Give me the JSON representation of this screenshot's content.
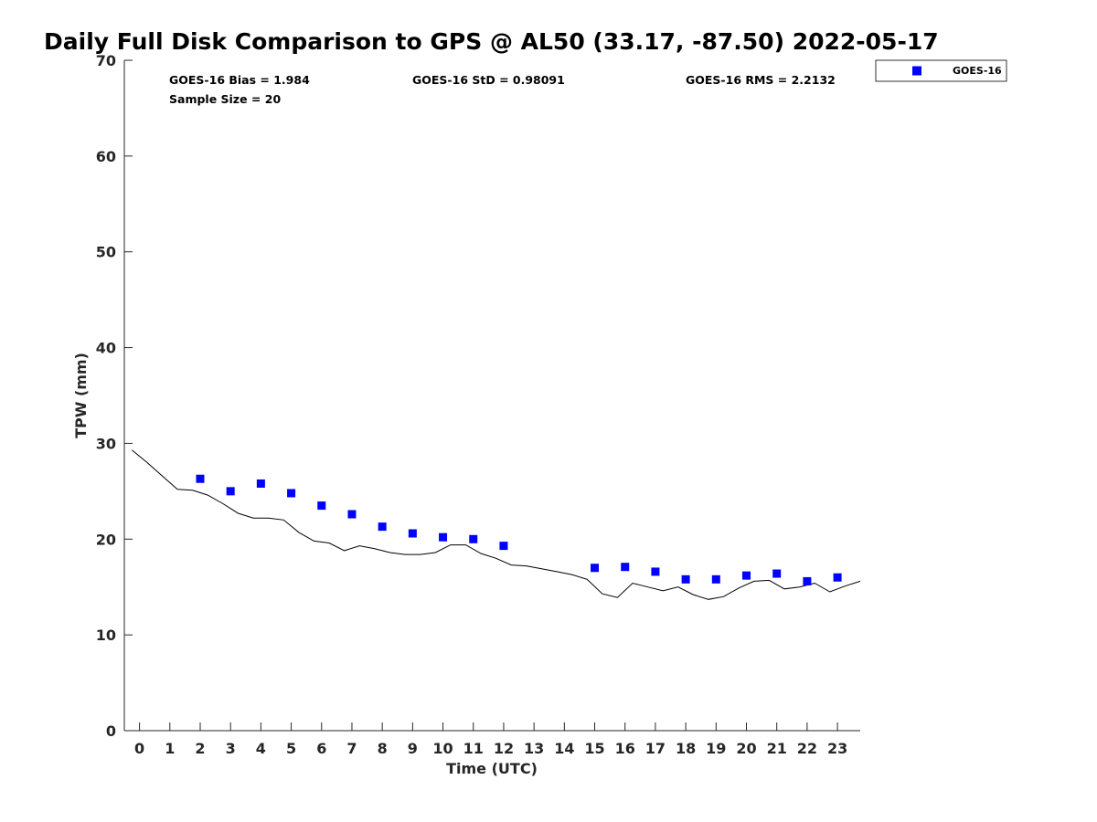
{
  "chart_data": {
    "type": "scatter",
    "title": "Daily Full Disk Comparison to GPS @ AL50 (33.17, -87.50) 2022-05-17",
    "xlabel": "Time (UTC)",
    "ylabel": "TPW (mm)",
    "xlim": [
      -0.5,
      23.75
    ],
    "ylim": [
      0,
      70
    ],
    "x_ticks": [
      0,
      1,
      2,
      3,
      4,
      5,
      6,
      7,
      8,
      9,
      10,
      11,
      12,
      13,
      14,
      15,
      16,
      17,
      18,
      19,
      20,
      21,
      22,
      23
    ],
    "y_ticks": [
      0,
      10,
      20,
      30,
      40,
      50,
      60,
      70
    ],
    "grid": false,
    "legend_position": "top-right",
    "stats": {
      "bias": "GOES-16 Bias = 1.984",
      "std": "GOES-16 StD = 0.98091",
      "rms": "GOES-16 RMS = 2.2132",
      "sample_size": "Sample Size = 20"
    },
    "series": [
      {
        "name": "GOES-16",
        "kind": "scatter",
        "color": "#0000ff",
        "marker": "square",
        "x": [
          2,
          3,
          4,
          5,
          6,
          7,
          8,
          9,
          10,
          11,
          12,
          15,
          16,
          17,
          18,
          19,
          20,
          21,
          22,
          23
        ],
        "y": [
          26.3,
          25.0,
          25.8,
          24.8,
          23.5,
          22.6,
          21.3,
          20.6,
          20.2,
          20.0,
          19.3,
          17.0,
          17.1,
          16.6,
          15.8,
          15.8,
          16.2,
          16.4,
          15.6,
          16.0
        ]
      },
      {
        "kind": "line",
        "color": "#000000",
        "x": [
          -0.25,
          0.25,
          0.75,
          1.25,
          1.75,
          2.25,
          2.75,
          3.25,
          3.75,
          4.25,
          4.75,
          5.25,
          5.75,
          6.25,
          6.75,
          7.25,
          7.75,
          8.25,
          8.75,
          9.25,
          9.75,
          10.25,
          10.75,
          11.25,
          11.75,
          12.25,
          12.75,
          13.25,
          13.75,
          14.25,
          14.75,
          15.25,
          15.75,
          16.25,
          16.75,
          17.25,
          17.75,
          18.25,
          18.75,
          19.25,
          19.75,
          20.25,
          20.75,
          21.25,
          21.75,
          22.25,
          22.75,
          23.25,
          23.75
        ],
        "y": [
          29.3,
          28.0,
          26.6,
          25.2,
          25.1,
          24.6,
          23.7,
          22.7,
          22.2,
          22.2,
          22.0,
          20.7,
          19.8,
          19.6,
          18.8,
          19.3,
          19.0,
          18.6,
          18.4,
          18.4,
          18.6,
          19.4,
          19.4,
          18.5,
          18.0,
          17.3,
          17.2,
          16.9,
          16.6,
          16.3,
          15.8,
          14.3,
          13.9,
          15.4,
          15.0,
          14.6,
          15.0,
          14.2,
          13.7,
          14.0,
          14.9,
          15.6,
          15.7,
          14.8,
          15.0,
          15.4,
          14.5,
          15.1,
          15.6
        ]
      }
    ]
  }
}
